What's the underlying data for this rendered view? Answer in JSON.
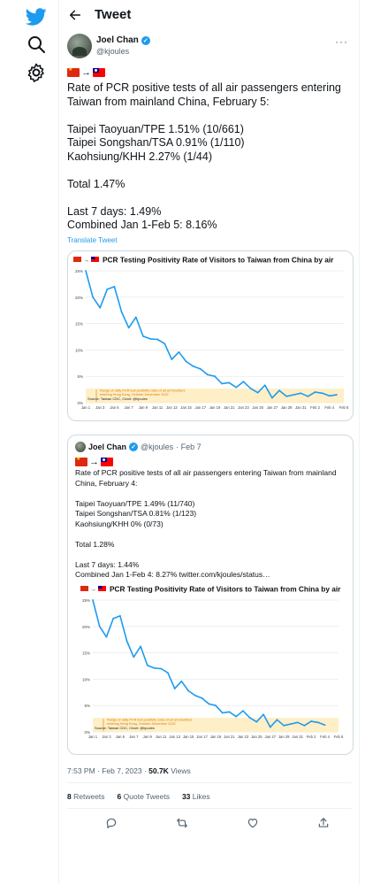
{
  "header": {
    "title": "Tweet"
  },
  "author": {
    "name": "Joel Chan",
    "handle": "@kjoules"
  },
  "tweet": {
    "text": "Rate of PCR positive tests of all air passengers entering Taiwan from mainland China, February 5:\n\nTaipei Taoyuan/TPE 1.51% (10/661)\nTaipei Songshan/TSA 0.91% (1/110)\nKaohsiung/KHH 2.27% (1/44)\n\nTotal 1.47%\n\nLast 7 days: 1.49%\nCombined Jan 1-Feb 5: 8.16%",
    "translate_label": "Translate Tweet"
  },
  "quote": {
    "name": "Joel Chan",
    "handle": "@kjoules",
    "date": "· Feb 7",
    "text": "Rate of PCR positive tests of all air passengers entering Taiwan from mainland China, February 4:\n\nTaipei Taoyuan/TPE 1.49% (11/740)\nTaipei Songshan/TSA 0.81% (1/123)\nKaohsiung/KHH 0% (0/73)\n\nTotal 1.28%\n\nLast 7 days: 1.44%\nCombined Jan 1-Feb 4: 8.27%  twitter.com/kjoules/status…"
  },
  "meta": {
    "time": "7:53 PM · Feb 7, 2023 · ",
    "views_count": "50.7K",
    "views_label": " Views"
  },
  "stats": {
    "retweets": "8",
    "retweets_label": "Retweets",
    "quotes": "6",
    "quotes_label": "Quote Tweets",
    "likes": "33",
    "likes_label": "Likes"
  },
  "icons": {
    "rail": [
      "twitter-logo-icon",
      "search-icon",
      "settings-icon"
    ],
    "actions": [
      "reply-icon",
      "retweet-icon",
      "like-icon",
      "share-icon"
    ]
  },
  "colors": {
    "accent": "#1d9bf0",
    "line": "#1d9bf0",
    "band": "#fde9b3",
    "band_text": "#e07b00"
  },
  "chart_data": [
    {
      "type": "line",
      "title": "PCR Testing Positivity Rate of Visitors to Taiwan from China by air",
      "x": [
        "Jan 1",
        "Jan 2",
        "Jan 3",
        "Jan 4",
        "Jan 5",
        "Jan 6",
        "Jan 7",
        "Jan 8",
        "Jan 9",
        "Jan 10",
        "Jan 11",
        "Jan 12",
        "Jan 13",
        "Jan 14",
        "Jan 15",
        "Jan 16",
        "Jan 17",
        "Jan 18",
        "Jan 19",
        "Jan 20",
        "Jan 21",
        "Jan 22",
        "Jan 23",
        "Jan 24",
        "Jan 25",
        "Jan 26",
        "Jan 27",
        "Jan 28",
        "Jan 29",
        "Jan 30",
        "Jan 31",
        "Feb 1",
        "Feb 2",
        "Feb 3",
        "Feb 4",
        "Feb 5"
      ],
      "values": [
        25.0,
        20.0,
        18.0,
        21.5,
        22.0,
        17.2,
        14.2,
        16.2,
        12.6,
        12.1,
        12.0,
        11.2,
        8.2,
        9.6,
        7.8,
        6.9,
        6.4,
        5.3,
        5.0,
        3.6,
        3.8,
        2.9,
        4.0,
        2.7,
        1.9,
        3.3,
        0.9,
        2.3,
        1.2,
        1.5,
        1.8,
        1.2,
        2.0,
        1.8,
        1.3,
        1.5
      ],
      "xticks": [
        "Jan 1",
        "Jan 3",
        "Jan 5",
        "Jan 7",
        "Jan 9",
        "Jan 11",
        "Jan 13",
        "Jan 15",
        "Jan 17",
        "Jan 19",
        "Jan 21",
        "Jan 23",
        "Jan 25",
        "Jan 27",
        "Jan 29",
        "Jan 31",
        "Feb 2",
        "Feb 4",
        "Feb 6"
      ],
      "yticks": [
        "0%",
        "5%",
        "10%",
        "15%",
        "20%",
        "25%"
      ],
      "ylim": [
        0,
        25
      ],
      "band": {
        "from": 0.3,
        "to": 2.0,
        "label_line1": "Range of daily PCR test positivity rates of all air travellers",
        "label_line2": "entering Hong Kong, October-December 2022"
      },
      "source": "Source: Taiwan CDC, Chart: @kjoules",
      "grid": true
    },
    {
      "type": "line",
      "title": "PCR Testing Positivity Rate of Visitors to Taiwan from China by air",
      "x": [
        "Jan 1",
        "Jan 2",
        "Jan 3",
        "Jan 4",
        "Jan 5",
        "Jan 6",
        "Jan 7",
        "Jan 8",
        "Jan 9",
        "Jan 10",
        "Jan 11",
        "Jan 12",
        "Jan 13",
        "Jan 14",
        "Jan 15",
        "Jan 16",
        "Jan 17",
        "Jan 18",
        "Jan 19",
        "Jan 20",
        "Jan 21",
        "Jan 22",
        "Jan 23",
        "Jan 24",
        "Jan 25",
        "Jan 26",
        "Jan 27",
        "Jan 28",
        "Jan 29",
        "Jan 30",
        "Jan 31",
        "Feb 1",
        "Feb 2",
        "Feb 3",
        "Feb 4"
      ],
      "values": [
        25.0,
        20.0,
        18.0,
        21.5,
        22.0,
        17.2,
        14.2,
        16.2,
        12.6,
        12.1,
        12.0,
        11.2,
        8.2,
        9.6,
        7.8,
        6.9,
        6.4,
        5.3,
        5.0,
        3.6,
        3.8,
        2.9,
        4.0,
        2.7,
        1.9,
        3.3,
        0.9,
        2.3,
        1.2,
        1.5,
        1.8,
        1.2,
        2.0,
        1.8,
        1.3
      ],
      "xticks": [
        "Jan 1",
        "Jan 3",
        "Jan 5",
        "Jan 7",
        "Jan 9",
        "Jan 11",
        "Jan 13",
        "Jan 15",
        "Jan 17",
        "Jan 19",
        "Jan 21",
        "Jan 23",
        "Jan 25",
        "Jan 27",
        "Jan 29",
        "Jan 31",
        "Feb 2",
        "Feb 4",
        "Feb 6"
      ],
      "yticks": [
        "0%",
        "5%",
        "10%",
        "15%",
        "20%",
        "25%"
      ],
      "ylim": [
        0,
        25
      ],
      "band": {
        "from": 0.3,
        "to": 2.0,
        "label_line1": "Range of daily PCR test positivity rates of all air travellers",
        "label_line2": "entering Hong Kong, October-December 2022"
      },
      "source": "Source: Taiwan CDC, Chart: @kjoules",
      "grid": true
    }
  ]
}
